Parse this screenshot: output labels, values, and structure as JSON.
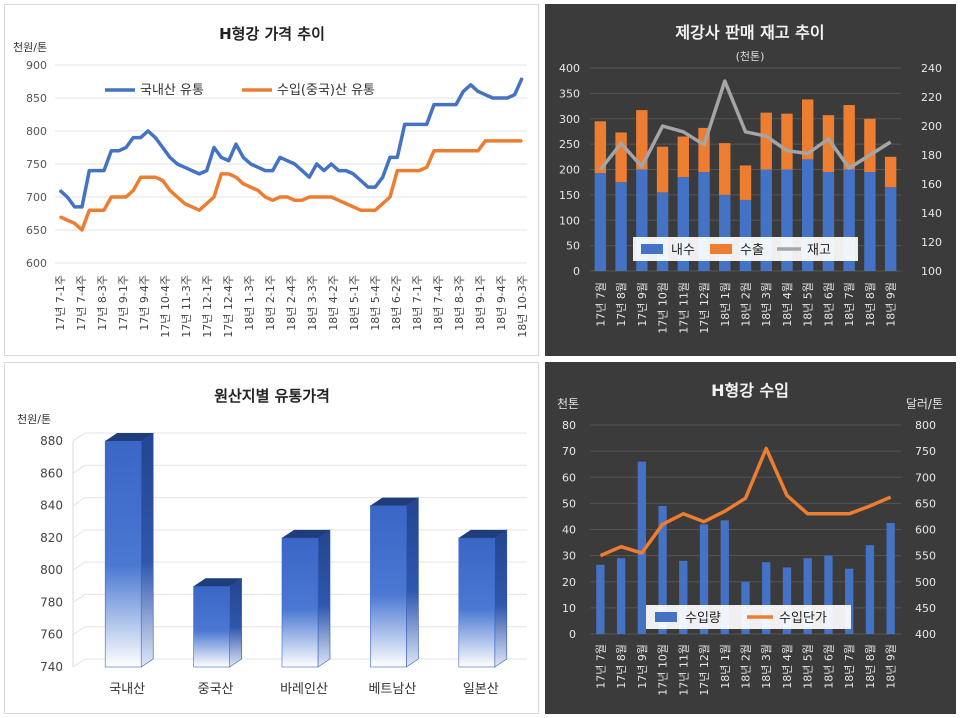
{
  "chart_data": [
    {
      "type": "line",
      "title": "H형강 가격 추이",
      "ylabel": "천원/톤",
      "ylim": [
        600,
        900
      ],
      "yticks": [
        600,
        650,
        700,
        750,
        800,
        850,
        900
      ],
      "legend_position": "top",
      "grid": true,
      "x_tick_labels": [
        "17년 7-1주",
        "17년 7-4주",
        "17년 8-3주",
        "17년 9-1주",
        "17년 9-4주",
        "17년 10-4주",
        "17년 11-3주",
        "17년 12-1주",
        "17년 12-4주",
        "18년 1-3주",
        "18년 2-1주",
        "18년 2-4주",
        "18년 3-3주",
        "18년 4-2주",
        "18년 5-1주",
        "18년 5-4주",
        "18년 6-2주",
        "18년 7-1주",
        "18년 7-4주",
        "18년 8-3주",
        "18년 9-1주",
        "18년 9-4주",
        "18년 10-3주"
      ],
      "series": [
        {
          "name": "국내산 유통",
          "color": "#4472c4",
          "values": [
            710,
            700,
            685,
            685,
            740,
            740,
            740,
            770,
            770,
            775,
            790,
            790,
            800,
            790,
            775,
            760,
            750,
            745,
            740,
            735,
            740,
            775,
            760,
            755,
            780,
            760,
            750,
            745,
            740,
            740,
            760,
            755,
            750,
            740,
            730,
            750,
            740,
            750,
            740,
            740,
            735,
            725,
            715,
            715,
            730,
            760,
            760,
            810,
            810,
            810,
            810,
            840,
            840,
            840,
            840,
            860,
            870,
            860,
            855,
            850,
            850,
            850,
            855,
            880
          ]
        },
        {
          "name": "수입(중국)산 유통",
          "color": "#ed7d31",
          "values": [
            670,
            665,
            660,
            650,
            680,
            680,
            680,
            700,
            700,
            700,
            710,
            730,
            730,
            730,
            725,
            710,
            700,
            690,
            685,
            680,
            690,
            700,
            735,
            735,
            730,
            720,
            715,
            710,
            700,
            695,
            700,
            700,
            695,
            695,
            700,
            700,
            700,
            700,
            695,
            690,
            685,
            680,
            680,
            680,
            690,
            700,
            740,
            740,
            740,
            740,
            745,
            770,
            770,
            770,
            770,
            770,
            770,
            770,
            785,
            785,
            785,
            785,
            785,
            785
          ]
        }
      ]
    },
    {
      "type": "bar",
      "title": "제강사 판매 재고 추이",
      "subtitle": "(천톤)",
      "ylim": [
        0,
        400
      ],
      "y2lim": [
        100,
        240
      ],
      "yticks": [
        0,
        50,
        100,
        150,
        200,
        250,
        300,
        350,
        400
      ],
      "y2ticks": [
        100,
        120,
        140,
        160,
        180,
        200,
        220,
        240
      ],
      "legend_position": "bottom-inside",
      "categories": [
        "17년 7월",
        "17년 8월",
        "17년 9월",
        "17년 10월",
        "17년 11월",
        "17년 12월",
        "18년 1월",
        "18년 2월",
        "18년 3월",
        "18년 4월",
        "18년 5월",
        "18년 6월",
        "18년 7월",
        "18년 8월",
        "18년 9월"
      ],
      "series": [
        {
          "name": "내수",
          "type": "bar",
          "stacked": true,
          "color": "#4472c4",
          "values": [
            193,
            175,
            200,
            155,
            185,
            195,
            150,
            140,
            200,
            200,
            220,
            195,
            200,
            195,
            165
          ]
        },
        {
          "name": "수출",
          "type": "bar",
          "stacked": true,
          "color": "#ed7d31",
          "values": [
            102,
            98,
            117,
            90,
            80,
            87,
            102,
            68,
            112,
            110,
            118,
            112,
            127,
            105,
            60
          ]
        },
        {
          "name": "재고",
          "type": "line",
          "axis": "right",
          "color": "#a5a5a5",
          "values": [
            170,
            188,
            172,
            200,
            196,
            187,
            231,
            196,
            193,
            183,
            181,
            191,
            171,
            180,
            189
          ]
        }
      ]
    },
    {
      "type": "bar",
      "title": "원산지별 유통가격",
      "ylabel": "천원/톤",
      "ylim": [
        740,
        880
      ],
      "yticks": [
        740,
        760,
        780,
        800,
        820,
        840,
        860,
        880
      ],
      "categories": [
        "국내산",
        "중국산",
        "바레인산",
        "베트남산",
        "일본산"
      ],
      "values": [
        880,
        790,
        820,
        840,
        820
      ]
    },
    {
      "type": "bar",
      "title": "H형강 수입",
      "ylabel": "천톤",
      "y2label": "달러/톤",
      "ylim": [
        0,
        80
      ],
      "y2lim": [
        400,
        800
      ],
      "yticks": [
        0,
        10,
        20,
        30,
        40,
        50,
        60,
        70,
        80
      ],
      "y2ticks": [
        400,
        450,
        500,
        550,
        600,
        650,
        700,
        750,
        800
      ],
      "legend_position": "bottom-inside",
      "categories": [
        "17년 7월",
        "17년 8월",
        "17년 9월",
        "17년 10월",
        "17년 11월",
        "17년 12월",
        "18년 1월",
        "18년 2월",
        "18년 3월",
        "18년 4월",
        "18년 5월",
        "18년 6월",
        "18년 7월",
        "18년 8월",
        "18년 9월"
      ],
      "series": [
        {
          "name": "수입량",
          "type": "bar",
          "color": "#4472c4",
          "values": [
            26.5,
            29,
            66,
            49,
            28,
            42,
            43.5,
            20,
            27.5,
            25.5,
            29,
            30,
            25,
            34,
            42.5
          ]
        },
        {
          "name": "수입단가",
          "type": "line",
          "axis": "right",
          "color": "#ed7d31",
          "values": [
            550,
            567,
            555,
            610,
            630,
            615,
            635,
            660,
            755,
            665,
            630,
            630,
            630,
            645,
            662
          ]
        }
      ]
    }
  ]
}
